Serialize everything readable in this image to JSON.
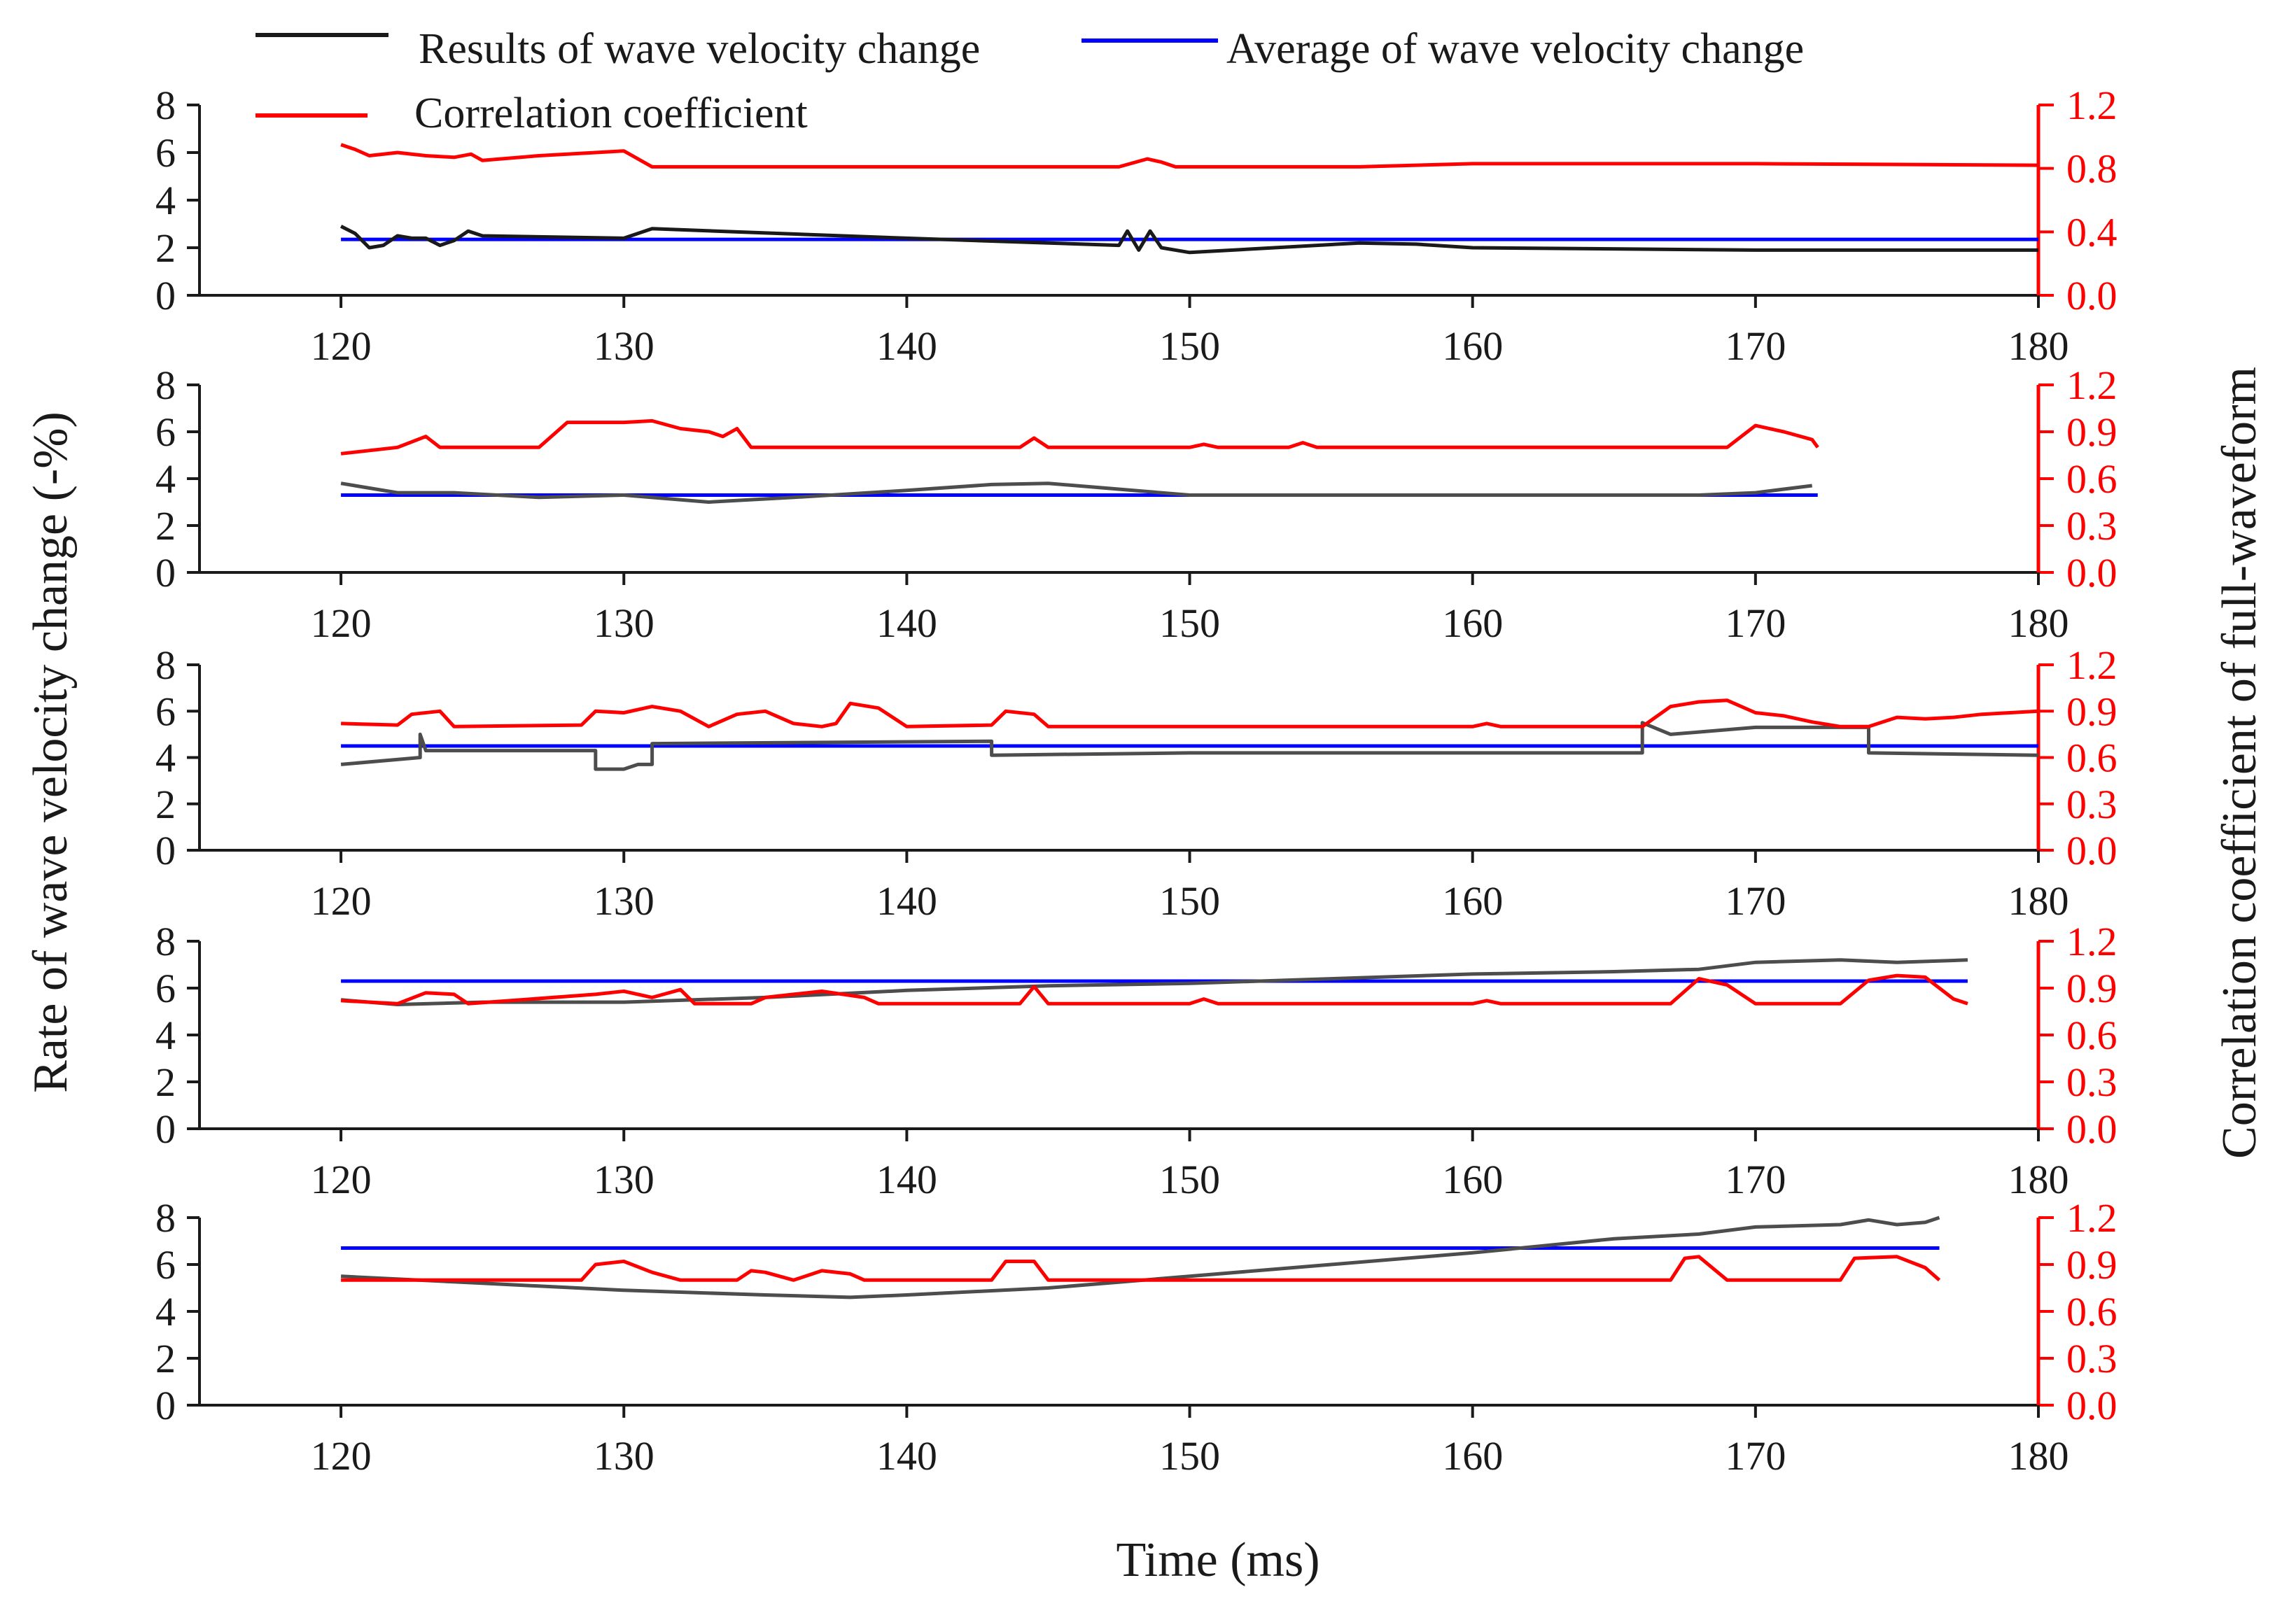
{
  "chart_data": {
    "type": "line",
    "xlabel": "Time (ms)",
    "ylabel_left": "Rate of wave velocity change (-%)",
    "ylabel_right": "Correlation coefficient of full-waveform",
    "xlim": [
      115,
      180
    ],
    "xticks": [
      120,
      130,
      140,
      150,
      160,
      170,
      180
    ],
    "ylim_left": [
      0,
      8
    ],
    "yticks_left": [
      0,
      2,
      4,
      6,
      8
    ],
    "ylim_right": [
      0.0,
      1.2
    ],
    "yticks_right": [
      "0.0",
      "0.3",
      "0.6",
      "0.9",
      "1.2"
    ],
    "yticks_right_panel1": [
      "0.0",
      "0.4",
      "0.8",
      "1.2"
    ],
    "colors": {
      "results": "#1a1a1a",
      "results_grey": "#4d4d4d",
      "average": "#0000ff",
      "correlation": "#ff0000"
    },
    "legend": [
      {
        "label": "Results of wave velocity change",
        "color": "#1a1a1a"
      },
      {
        "label": "Average of wave velocity change",
        "color": "#0000ff"
      },
      {
        "label": "Correlation coefficient",
        "color": "#ff0000"
      }
    ],
    "panels": [
      {
        "average": 2.35,
        "results": [
          [
            120,
            2.9
          ],
          [
            120.5,
            2.6
          ],
          [
            121,
            2.0
          ],
          [
            121.5,
            2.1
          ],
          [
            122,
            2.5
          ],
          [
            122.5,
            2.4
          ],
          [
            123,
            2.4
          ],
          [
            123.5,
            2.1
          ],
          [
            124,
            2.3
          ],
          [
            124.5,
            2.7
          ],
          [
            125,
            2.5
          ],
          [
            130,
            2.4
          ],
          [
            131,
            2.8
          ],
          [
            140,
            2.4
          ],
          [
            147.5,
            2.1
          ],
          [
            147.8,
            2.7
          ],
          [
            148.2,
            1.9
          ],
          [
            148.6,
            2.7
          ],
          [
            149,
            2.0
          ],
          [
            150,
            1.8
          ],
          [
            156,
            2.2
          ],
          [
            158,
            2.15
          ],
          [
            160,
            2.0
          ],
          [
            170,
            1.9
          ],
          [
            180,
            1.9
          ]
        ],
        "correlation": [
          [
            120,
            0.95
          ],
          [
            120.5,
            0.92
          ],
          [
            121,
            0.88
          ],
          [
            122,
            0.9
          ],
          [
            123,
            0.88
          ],
          [
            124,
            0.87
          ],
          [
            124.6,
            0.89
          ],
          [
            125,
            0.85
          ],
          [
            127,
            0.88
          ],
          [
            129,
            0.9
          ],
          [
            130,
            0.91
          ],
          [
            131,
            0.81
          ],
          [
            147.5,
            0.81
          ],
          [
            148.5,
            0.86
          ],
          [
            149,
            0.84
          ],
          [
            149.5,
            0.81
          ],
          [
            156,
            0.81
          ],
          [
            158,
            0.82
          ],
          [
            160,
            0.83
          ],
          [
            170,
            0.83
          ],
          [
            180,
            0.82
          ]
        ]
      },
      {
        "average": 3.3,
        "results": [
          [
            120,
            3.8
          ],
          [
            122,
            3.4
          ],
          [
            124,
            3.4
          ],
          [
            127,
            3.2
          ],
          [
            130,
            3.3
          ],
          [
            133,
            3.0
          ],
          [
            136,
            3.2
          ],
          [
            140,
            3.5
          ],
          [
            143,
            3.75
          ],
          [
            145,
            3.8
          ],
          [
            147,
            3.6
          ],
          [
            150,
            3.3
          ],
          [
            155,
            3.3
          ],
          [
            160,
            3.3
          ],
          [
            165,
            3.3
          ],
          [
            168,
            3.3
          ],
          [
            170,
            3.4
          ],
          [
            172,
            3.7
          ]
        ],
        "correlation": [
          [
            120,
            0.76
          ],
          [
            122,
            0.8
          ],
          [
            123,
            0.87
          ],
          [
            123.5,
            0.8
          ],
          [
            127,
            0.8
          ],
          [
            128,
            0.96
          ],
          [
            130,
            0.96
          ],
          [
            131,
            0.97
          ],
          [
            132,
            0.92
          ],
          [
            133,
            0.9
          ],
          [
            133.5,
            0.87
          ],
          [
            134,
            0.92
          ],
          [
            134.5,
            0.8
          ],
          [
            144,
            0.8
          ],
          [
            144.5,
            0.86
          ],
          [
            145,
            0.8
          ],
          [
            150,
            0.8
          ],
          [
            150.5,
            0.82
          ],
          [
            151,
            0.8
          ],
          [
            153.5,
            0.8
          ],
          [
            154,
            0.83
          ],
          [
            154.5,
            0.8
          ],
          [
            169,
            0.8
          ],
          [
            170,
            0.94
          ],
          [
            171,
            0.9
          ],
          [
            172,
            0.85
          ],
          [
            172.2,
            0.8
          ]
        ]
      },
      {
        "average": 4.5,
        "results": [
          [
            120,
            3.7
          ],
          [
            122.8,
            4.0
          ],
          [
            122.8,
            5.0
          ],
          [
            123,
            4.3
          ],
          [
            129,
            4.3
          ],
          [
            129,
            3.5
          ],
          [
            130,
            3.5
          ],
          [
            130.5,
            3.7
          ],
          [
            131,
            3.7
          ],
          [
            131,
            4.6
          ],
          [
            143,
            4.7
          ],
          [
            143,
            4.1
          ],
          [
            150,
            4.2
          ],
          [
            160,
            4.2
          ],
          [
            166,
            4.2
          ],
          [
            166,
            5.5
          ],
          [
            167,
            5.0
          ],
          [
            170,
            5.3
          ],
          [
            174,
            5.3
          ],
          [
            174,
            4.2
          ],
          [
            180,
            4.1
          ]
        ],
        "correlation": [
          [
            120,
            0.82
          ],
          [
            122,
            0.81
          ],
          [
            122.5,
            0.88
          ],
          [
            123.5,
            0.9
          ],
          [
            124,
            0.8
          ],
          [
            128.5,
            0.81
          ],
          [
            129,
            0.9
          ],
          [
            130,
            0.89
          ],
          [
            131,
            0.93
          ],
          [
            132,
            0.9
          ],
          [
            133,
            0.8
          ],
          [
            134,
            0.88
          ],
          [
            135,
            0.9
          ],
          [
            136,
            0.82
          ],
          [
            137,
            0.8
          ],
          [
            137.5,
            0.82
          ],
          [
            138,
            0.95
          ],
          [
            139,
            0.92
          ],
          [
            140,
            0.8
          ],
          [
            143,
            0.81
          ],
          [
            143.5,
            0.9
          ],
          [
            144.5,
            0.88
          ],
          [
            145,
            0.8
          ],
          [
            160,
            0.8
          ],
          [
            160.5,
            0.82
          ],
          [
            161,
            0.8
          ],
          [
            166,
            0.8
          ],
          [
            167,
            0.93
          ],
          [
            168,
            0.96
          ],
          [
            169,
            0.97
          ],
          [
            170,
            0.89
          ],
          [
            171,
            0.87
          ],
          [
            172,
            0.83
          ],
          [
            173,
            0.8
          ],
          [
            174,
            0.8
          ],
          [
            175,
            0.86
          ],
          [
            176,
            0.85
          ],
          [
            177,
            0.86
          ],
          [
            178,
            0.88
          ],
          [
            179,
            0.89
          ],
          [
            180,
            0.9
          ]
        ]
      },
      {
        "average": 6.3,
        "results": [
          [
            120,
            5.5
          ],
          [
            122,
            5.3
          ],
          [
            125,
            5.4
          ],
          [
            130,
            5.4
          ],
          [
            135,
            5.6
          ],
          [
            140,
            5.9
          ],
          [
            145,
            6.1
          ],
          [
            150,
            6.2
          ],
          [
            155,
            6.4
          ],
          [
            160,
            6.6
          ],
          [
            165,
            6.7
          ],
          [
            168,
            6.8
          ],
          [
            170,
            7.1
          ],
          [
            173,
            7.2
          ],
          [
            175,
            7.1
          ],
          [
            177.5,
            7.2
          ]
        ],
        "correlation": [
          [
            120,
            0.82
          ],
          [
            122,
            0.8
          ],
          [
            123,
            0.87
          ],
          [
            124,
            0.86
          ],
          [
            124.5,
            0.8
          ],
          [
            129,
            0.86
          ],
          [
            130,
            0.88
          ],
          [
            131,
            0.84
          ],
          [
            132,
            0.89
          ],
          [
            132.5,
            0.8
          ],
          [
            134.5,
            0.8
          ],
          [
            135,
            0.84
          ],
          [
            136,
            0.86
          ],
          [
            137,
            0.88
          ],
          [
            138.5,
            0.84
          ],
          [
            139,
            0.8
          ],
          [
            144,
            0.8
          ],
          [
            144.5,
            0.91
          ],
          [
            145,
            0.8
          ],
          [
            150,
            0.8
          ],
          [
            150.5,
            0.83
          ],
          [
            151,
            0.8
          ],
          [
            160,
            0.8
          ],
          [
            160.5,
            0.82
          ],
          [
            161,
            0.8
          ],
          [
            167,
            0.8
          ],
          [
            168,
            0.96
          ],
          [
            169,
            0.92
          ],
          [
            170,
            0.8
          ],
          [
            173,
            0.8
          ],
          [
            174,
            0.95
          ],
          [
            175,
            0.98
          ],
          [
            176,
            0.97
          ],
          [
            177,
            0.83
          ],
          [
            177.5,
            0.8
          ]
        ]
      },
      {
        "average": 6.7,
        "results": [
          [
            120,
            5.5
          ],
          [
            125,
            5.2
          ],
          [
            130,
            4.9
          ],
          [
            135,
            4.7
          ],
          [
            138,
            4.6
          ],
          [
            140,
            4.7
          ],
          [
            145,
            5.0
          ],
          [
            150,
            5.5
          ],
          [
            155,
            6.0
          ],
          [
            160,
            6.5
          ],
          [
            165,
            7.1
          ],
          [
            168,
            7.3
          ],
          [
            170,
            7.6
          ],
          [
            173,
            7.7
          ],
          [
            174,
            7.9
          ],
          [
            175,
            7.7
          ],
          [
            176,
            7.8
          ],
          [
            176.5,
            8.0
          ]
        ],
        "correlation": [
          [
            120,
            0.8
          ],
          [
            128.5,
            0.8
          ],
          [
            129,
            0.9
          ],
          [
            130,
            0.92
          ],
          [
            131,
            0.85
          ],
          [
            132,
            0.8
          ],
          [
            134,
            0.8
          ],
          [
            134.5,
            0.86
          ],
          [
            135,
            0.85
          ],
          [
            136,
            0.8
          ],
          [
            137,
            0.86
          ],
          [
            138,
            0.84
          ],
          [
            138.5,
            0.8
          ],
          [
            143,
            0.8
          ],
          [
            143.5,
            0.92
          ],
          [
            144.5,
            0.92
          ],
          [
            145,
            0.8
          ],
          [
            167,
            0.8
          ],
          [
            167.5,
            0.94
          ],
          [
            168,
            0.95
          ],
          [
            169,
            0.8
          ],
          [
            173,
            0.8
          ],
          [
            173.5,
            0.94
          ],
          [
            175,
            0.95
          ],
          [
            176,
            0.88
          ],
          [
            176.5,
            0.8
          ]
        ]
      }
    ]
  }
}
